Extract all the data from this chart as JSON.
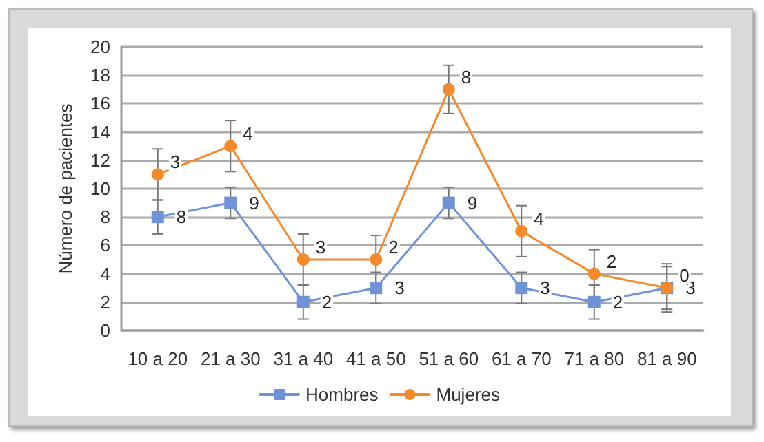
{
  "chart_data": {
    "type": "line",
    "ylabel": "Número de pacientes",
    "categories": [
      "10 a 20",
      "21 a 30",
      "31 a 40",
      "41 a 50",
      "51 a 60",
      "61 a 70",
      "71 a 80",
      "81 a 90"
    ],
    "series": [
      {
        "name": "Hombres",
        "color": "#6f93d6",
        "marker": "square",
        "values": [
          8,
          9,
          2,
          3,
          9,
          3,
          2,
          3
        ],
        "errors": [
          1.2,
          1.1,
          1.2,
          1.1,
          1.1,
          1.1,
          1.2,
          1.7
        ],
        "value_labels": [
          "8",
          "9",
          "2",
          "3",
          "9",
          "3",
          "2",
          "3"
        ]
      },
      {
        "name": "Mujeres",
        "color": "#f58a2a",
        "marker": "circle",
        "values": [
          11,
          13,
          5,
          5,
          17,
          7,
          4,
          3
        ],
        "errors": [
          1.8,
          1.8,
          1.8,
          1.7,
          1.7,
          1.8,
          1.7,
          1.5
        ]
      }
    ],
    "annotations": [
      {
        "text": "3",
        "x": "10 a 20",
        "y": 11
      },
      {
        "text": "4",
        "x": "21 a 30",
        "y": 13
      },
      {
        "text": "3",
        "x": "31 a 40",
        "y": 5
      },
      {
        "text": "2",
        "x": "41 a 50",
        "y": 5
      },
      {
        "text": "8",
        "x": "51 a 60",
        "y": 17
      },
      {
        "text": "4",
        "x": "61 a 70",
        "y": 7
      },
      {
        "text": "2",
        "x": "71 a 80",
        "y": 4
      },
      {
        "text": "0",
        "x": "81 a 90",
        "y": 3
      }
    ],
    "ylim": [
      0,
      20
    ],
    "yticks": [
      0,
      2,
      4,
      6,
      8,
      10,
      12,
      14,
      16,
      18,
      20
    ],
    "grid": "y",
    "legend": "bottom",
    "line_style": "solid"
  }
}
